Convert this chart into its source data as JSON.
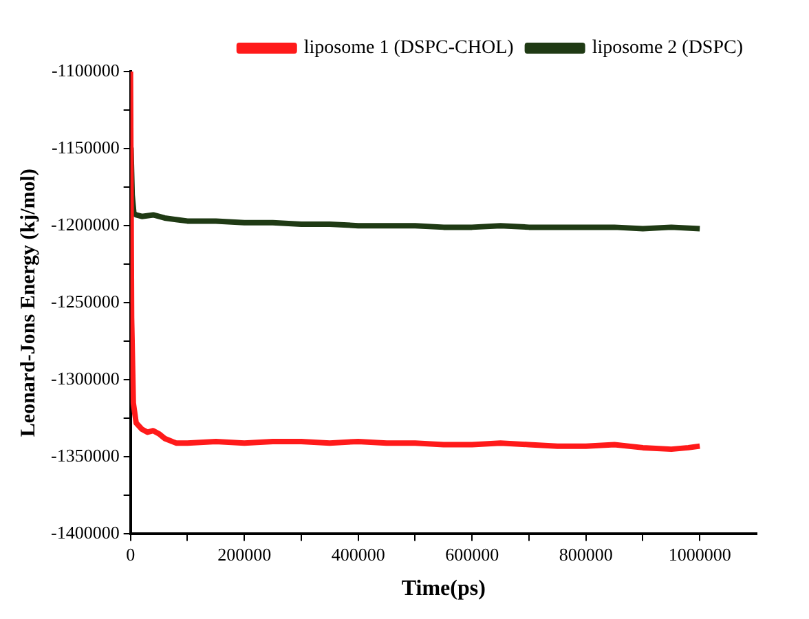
{
  "chart_data": {
    "type": "line",
    "xlabel": "Time(ps)",
    "ylabel": "Leonard-Jons Energy (kj/mol)",
    "xlim": [
      0,
      1100000
    ],
    "xticks": [
      0,
      {
        "value": 100000,
        "label": null
      },
      200000,
      {
        "value": 300000,
        "label": null
      },
      400000,
      {
        "value": 500000,
        "label": null
      },
      600000,
      {
        "value": 700000,
        "label": null
      },
      800000,
      {
        "value": 900000,
        "label": null
      },
      1000000
    ],
    "ylim": [
      -1400000,
      -1100000
    ],
    "yticks": [
      -1400000,
      {
        "value": -1375000,
        "label": null
      },
      -1350000,
      {
        "value": -1325000,
        "label": null
      },
      -1300000,
      {
        "value": -1275000,
        "label": null
      },
      -1250000,
      {
        "value": -1225000,
        "label": null
      },
      -1200000,
      {
        "value": -1175000,
        "label": null
      },
      -1150000,
      {
        "value": -1125000,
        "label": null
      },
      -1100000
    ],
    "grid": false,
    "legend": "top right",
    "marker": "none",
    "line_style": "solid",
    "series": [
      {
        "name": "liposome 1 (DSPC-CHOL)",
        "color": "#ff1a1a",
        "x": [
          0,
          2000,
          5000,
          10000,
          20000,
          30000,
          40000,
          50000,
          60000,
          80000,
          100000,
          150000,
          200000,
          250000,
          300000,
          350000,
          400000,
          450000,
          500000,
          550000,
          600000,
          650000,
          700000,
          750000,
          800000,
          850000,
          900000,
          950000,
          980000,
          1000000
        ],
        "values": [
          -1100000,
          -1260000,
          -1315000,
          -1328000,
          -1332000,
          -1334000,
          -1333000,
          -1335000,
          -1338000,
          -1341000,
          -1341000,
          -1340000,
          -1341000,
          -1340000,
          -1340000,
          -1341000,
          -1340000,
          -1341000,
          -1341000,
          -1342000,
          -1342000,
          -1341000,
          -1342000,
          -1343000,
          -1343000,
          -1342000,
          -1344000,
          -1345000,
          -1344000,
          -1343000
        ]
      },
      {
        "name": "liposome 2 (DSPC)",
        "color": "#1f3a14",
        "x": [
          0,
          1000,
          3000,
          6000,
          10000,
          20000,
          40000,
          60000,
          80000,
          100000,
          150000,
          200000,
          250000,
          300000,
          350000,
          400000,
          450000,
          500000,
          550000,
          600000,
          650000,
          700000,
          750000,
          800000,
          850000,
          900000,
          950000,
          1000000
        ],
        "values": [
          -1250000,
          -1150000,
          -1180000,
          -1192000,
          -1193000,
          -1194000,
          -1193000,
          -1195000,
          -1196000,
          -1197000,
          -1197000,
          -1198000,
          -1198000,
          -1199000,
          -1199000,
          -1200000,
          -1200000,
          -1200000,
          -1201000,
          -1201000,
          -1200000,
          -1201000,
          -1201000,
          -1201000,
          -1201000,
          -1202000,
          -1201000,
          -1202000
        ]
      }
    ]
  }
}
